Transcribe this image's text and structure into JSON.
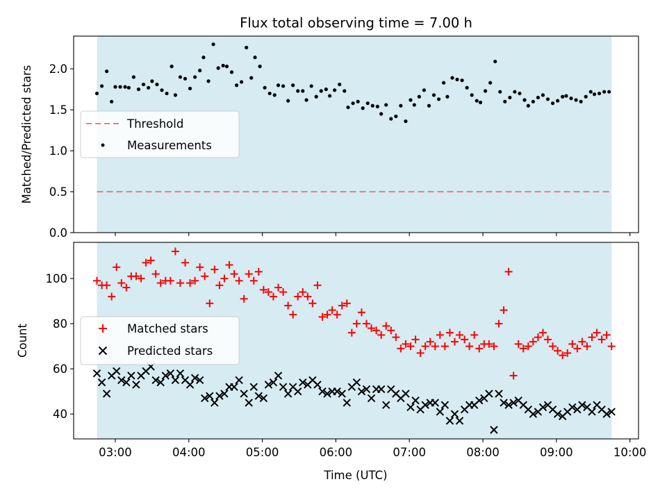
{
  "colors": {
    "span": "#add8e6",
    "threshold": "#f08080",
    "measurement": "#000000",
    "matched": "#ff0000",
    "predicted": "#000000"
  },
  "chart_data": [
    {
      "type": "scatter",
      "title": "Flux total observing time = 7.00 h",
      "ylabel": "Matched/Predicted stars",
      "xlabel": "",
      "xlim": [
        "02:26",
        "10:07"
      ],
      "ylim": [
        0,
        2.4
      ],
      "yticks": [
        "0.0",
        "0.5",
        "1.0",
        "1.5",
        "2.0"
      ],
      "shaded_span": [
        "02:45",
        "09:45"
      ],
      "threshold": 0.5,
      "legend_position": "center-left",
      "series": [
        {
          "name": "Threshold",
          "style": "dashed-line"
        },
        {
          "name": "Measurements",
          "style": "dot",
          "x": [
            "02:45",
            "02:49",
            "02:53",
            "02:57",
            "03:00",
            "03:04",
            "03:08",
            "03:11",
            "03:15",
            "03:19",
            "03:23",
            "03:27",
            "03:30",
            "03:34",
            "03:38",
            "03:42",
            "03:46",
            "03:49",
            "03:53",
            "03:57",
            "04:01",
            "04:05",
            "04:09",
            "04:12",
            "04:16",
            "04:20",
            "04:24",
            "04:28",
            "04:31",
            "04:35",
            "04:39",
            "04:43",
            "04:47",
            "04:51",
            "04:54",
            "04:58",
            "05:02",
            "05:06",
            "05:10",
            "05:13",
            "05:17",
            "05:21",
            "05:25",
            "05:29",
            "05:33",
            "05:36",
            "05:40",
            "05:44",
            "05:48",
            "05:52",
            "05:55",
            "05:59",
            "06:03",
            "06:07",
            "06:10",
            "06:14",
            "06:18",
            "06:22",
            "06:26",
            "06:30",
            "06:34",
            "06:37",
            "06:41",
            "06:45",
            "06:49",
            "06:53",
            "06:57",
            "07:01",
            "07:04",
            "07:08",
            "07:12",
            "07:16",
            "07:20",
            "07:24",
            "07:28",
            "07:31",
            "07:35",
            "07:39",
            "07:43",
            "07:47",
            "07:51",
            "07:55",
            "07:58",
            "08:02",
            "08:06",
            "08:10",
            "08:14",
            "08:18",
            "08:22",
            "08:26",
            "08:30",
            "08:34",
            "08:37",
            "08:41",
            "08:45",
            "08:49",
            "08:53",
            "08:57",
            "09:01",
            "09:05",
            "09:08",
            "09:12",
            "09:16",
            "09:20",
            "09:24",
            "09:28",
            "09:31",
            "09:35",
            "09:39",
            "09:43"
          ],
          "y": [
            1.7,
            1.79,
            1.97,
            1.6,
            1.78,
            1.78,
            1.78,
            1.77,
            1.9,
            1.75,
            1.81,
            1.77,
            1.85,
            1.81,
            1.74,
            1.7,
            2.03,
            1.68,
            1.9,
            1.88,
            1.76,
            1.9,
            1.98,
            2.14,
            1.85,
            2.3,
            2.01,
            2.04,
            2.03,
            1.96,
            1.8,
            1.84,
            2.26,
            1.89,
            2.14,
            2.03,
            1.77,
            1.7,
            1.68,
            1.8,
            1.79,
            1.61,
            1.8,
            1.73,
            1.73,
            1.62,
            1.79,
            1.66,
            1.73,
            1.75,
            1.67,
            1.74,
            1.81,
            1.73,
            1.53,
            1.58,
            1.6,
            1.52,
            1.58,
            1.55,
            1.54,
            1.45,
            1.56,
            1.39,
            1.42,
            1.55,
            1.36,
            1.62,
            1.56,
            1.66,
            1.74,
            1.55,
            1.68,
            1.63,
            1.83,
            1.66,
            1.89,
            1.87,
            1.86,
            1.77,
            1.68,
            1.61,
            1.59,
            1.73,
            1.83,
            2.09,
            1.72,
            1.6,
            1.65,
            1.72,
            1.7,
            1.62,
            1.55,
            1.6,
            1.65,
            1.68,
            1.63,
            1.58,
            1.61,
            1.66,
            1.67,
            1.64,
            1.62,
            1.6,
            1.66,
            1.72,
            1.69,
            1.7,
            1.72,
            1.72
          ]
        }
      ]
    },
    {
      "type": "scatter",
      "title": "",
      "ylabel": "Count",
      "xlabel": "Time (UTC)",
      "xlim": [
        "02:26",
        "10:07"
      ],
      "ylim": [
        29,
        116
      ],
      "yticks": [
        "40",
        "60",
        "80",
        "100"
      ],
      "xticks": [
        "03:00",
        "04:00",
        "05:00",
        "06:00",
        "07:00",
        "08:00",
        "09:00",
        "10:00"
      ],
      "shaded_span": [
        "02:45",
        "09:45"
      ],
      "legend_position": "center-left",
      "series": [
        {
          "name": "Matched stars",
          "style": "plus",
          "x": [
            "02:45",
            "02:49",
            "02:53",
            "02:57",
            "03:01",
            "03:05",
            "03:09",
            "03:13",
            "03:17",
            "03:21",
            "03:25",
            "03:29",
            "03:33",
            "03:37",
            "03:41",
            "03:45",
            "03:49",
            "03:53",
            "03:57",
            "04:01",
            "04:05",
            "04:09",
            "04:13",
            "04:17",
            "04:21",
            "04:25",
            "04:29",
            "04:33",
            "04:37",
            "04:41",
            "04:45",
            "04:49",
            "04:53",
            "04:57",
            "05:01",
            "05:05",
            "05:09",
            "05:13",
            "05:17",
            "05:21",
            "05:25",
            "05:29",
            "05:33",
            "05:37",
            "05:41",
            "05:45",
            "05:49",
            "05:53",
            "05:57",
            "06:01",
            "06:05",
            "06:09",
            "06:13",
            "06:17",
            "06:21",
            "06:25",
            "06:29",
            "06:33",
            "06:37",
            "06:41",
            "06:45",
            "06:49",
            "06:53",
            "06:57",
            "07:01",
            "07:05",
            "07:09",
            "07:13",
            "07:17",
            "07:21",
            "07:25",
            "07:29",
            "07:33",
            "07:37",
            "07:41",
            "07:45",
            "07:49",
            "07:53",
            "07:57",
            "08:01",
            "08:05",
            "08:09",
            "08:13",
            "08:17",
            "08:21",
            "08:25",
            "08:29",
            "08:33",
            "08:37",
            "08:41",
            "08:45",
            "08:49",
            "08:53",
            "08:57",
            "09:01",
            "09:05",
            "09:09",
            "09:13",
            "09:17",
            "09:21",
            "09:25",
            "09:29",
            "09:33",
            "09:37",
            "09:41",
            "09:45"
          ],
          "y": [
            99,
            97,
            97,
            92,
            105,
            98,
            96,
            101,
            101,
            100,
            107,
            108,
            102,
            98,
            99,
            99,
            112,
            98,
            107,
            98,
            99,
            105,
            101,
            89,
            104,
            97,
            100,
            106,
            102,
            99,
            91,
            102,
            99,
            103,
            95,
            94,
            92,
            96,
            94,
            88,
            84,
            92,
            94,
            92,
            89,
            97,
            83,
            84,
            86,
            84,
            88,
            89,
            76,
            80,
            85,
            80,
            78,
            77,
            75,
            79,
            77,
            74,
            69,
            71,
            70,
            73,
            67,
            70,
            72,
            70,
            75,
            70,
            76,
            72,
            75,
            73,
            70,
            75,
            69,
            71,
            71,
            70,
            80,
            86,
            103,
            57,
            71,
            69,
            70,
            72,
            74,
            76,
            73,
            70,
            68,
            66,
            67,
            71,
            69,
            72,
            70,
            74,
            76,
            73,
            75,
            70
          ]
        },
        {
          "name": "Predicted stars",
          "style": "cross",
          "x": [
            "02:45",
            "02:49",
            "02:53",
            "02:57",
            "03:01",
            "03:05",
            "03:09",
            "03:13",
            "03:17",
            "03:21",
            "03:25",
            "03:29",
            "03:33",
            "03:37",
            "03:41",
            "03:45",
            "03:49",
            "03:53",
            "03:57",
            "04:01",
            "04:05",
            "04:09",
            "04:13",
            "04:17",
            "04:21",
            "04:25",
            "04:29",
            "04:33",
            "04:37",
            "04:41",
            "04:45",
            "04:49",
            "04:53",
            "04:57",
            "05:01",
            "05:05",
            "05:09",
            "05:13",
            "05:17",
            "05:21",
            "05:25",
            "05:29",
            "05:33",
            "05:37",
            "05:41",
            "05:45",
            "05:49",
            "05:53",
            "05:57",
            "06:01",
            "06:05",
            "06:09",
            "06:13",
            "06:17",
            "06:21",
            "06:25",
            "06:29",
            "06:33",
            "06:37",
            "06:41",
            "06:45",
            "06:49",
            "06:53",
            "06:57",
            "07:01",
            "07:05",
            "07:09",
            "07:13",
            "07:17",
            "07:21",
            "07:25",
            "07:29",
            "07:33",
            "07:37",
            "07:41",
            "07:45",
            "07:49",
            "07:53",
            "07:57",
            "08:01",
            "08:05",
            "08:09",
            "08:13",
            "08:17",
            "08:21",
            "08:25",
            "08:29",
            "08:33",
            "08:37",
            "08:41",
            "08:45",
            "08:49",
            "08:53",
            "08:57",
            "09:01",
            "09:05",
            "09:09",
            "09:13",
            "09:17",
            "09:21",
            "09:25",
            "09:29",
            "09:33",
            "09:37",
            "09:41",
            "09:45"
          ],
          "y": [
            58,
            54,
            49,
            57,
            59,
            55,
            54,
            57,
            53,
            57,
            59,
            61,
            55,
            54,
            57,
            58,
            55,
            58,
            55,
            53,
            56,
            55,
            47,
            48,
            45,
            48,
            49,
            52,
            52,
            55,
            49,
            45,
            52,
            48,
            47,
            53,
            54,
            57,
            52,
            49,
            52,
            50,
            54,
            53,
            55,
            53,
            50,
            49,
            50,
            50,
            49,
            45,
            52,
            54,
            50,
            51,
            47,
            51,
            51,
            44,
            51,
            49,
            47,
            49,
            43,
            46,
            42,
            44,
            45,
            45,
            41,
            44,
            37,
            40,
            37,
            42,
            44,
            44,
            46,
            47,
            49,
            33,
            49,
            45,
            44,
            45,
            46,
            44,
            42,
            40,
            41,
            43,
            44,
            42,
            40,
            39,
            41,
            43,
            42,
            44,
            43,
            41,
            44,
            42,
            40,
            41
          ]
        }
      ]
    }
  ]
}
